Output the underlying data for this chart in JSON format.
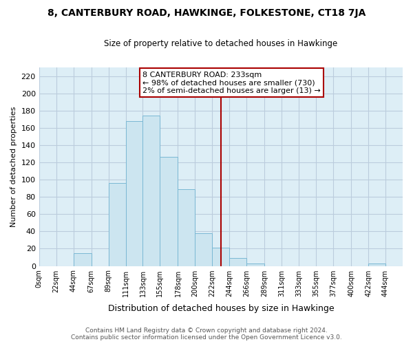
{
  "title": "8, CANTERBURY ROAD, HAWKINGE, FOLKESTONE, CT18 7JA",
  "subtitle": "Size of property relative to detached houses in Hawkinge",
  "xlabel": "Distribution of detached houses by size in Hawkinge",
  "ylabel": "Number of detached properties",
  "bar_color": "#cce5f0",
  "bar_edge_color": "#7ab8d4",
  "bg_color": "#ddeef6",
  "fig_color": "#ffffff",
  "grid_color": "#bbccdd",
  "tick_labels": [
    "0sqm",
    "22sqm",
    "44sqm",
    "67sqm",
    "89sqm",
    "111sqm",
    "133sqm",
    "155sqm",
    "178sqm",
    "200sqm",
    "222sqm",
    "244sqm",
    "266sqm",
    "289sqm",
    "311sqm",
    "333sqm",
    "355sqm",
    "377sqm",
    "400sqm",
    "422sqm",
    "444sqm"
  ],
  "label_values": [
    0,
    22,
    44,
    67,
    89,
    111,
    133,
    155,
    178,
    200,
    222,
    244,
    266,
    289,
    311,
    333,
    355,
    377,
    400,
    422,
    444
  ],
  "bar_heights": [
    0,
    0,
    15,
    0,
    96,
    168,
    174,
    126,
    89,
    38,
    21,
    9,
    3,
    0,
    0,
    0,
    0,
    0,
    0,
    3,
    0
  ],
  "ylim": [
    0,
    230
  ],
  "yticks": [
    0,
    20,
    40,
    60,
    80,
    100,
    120,
    140,
    160,
    180,
    200,
    220
  ],
  "xlim_max": 466,
  "property_line_x": 233,
  "property_line_label": "8 CANTERBURY ROAD: 233sqm",
  "annotation_line1": "← 98% of detached houses are smaller (730)",
  "annotation_line2": "2% of semi-detached houses are larger (13) →",
  "footer_line1": "Contains HM Land Registry data © Crown copyright and database right 2024.",
  "footer_line2": "Contains public sector information licensed under the Open Government Licence v3.0.",
  "property_line_color": "#aa0000",
  "annotation_box_color": "#ffffff",
  "annotation_box_edge": "#aa0000"
}
